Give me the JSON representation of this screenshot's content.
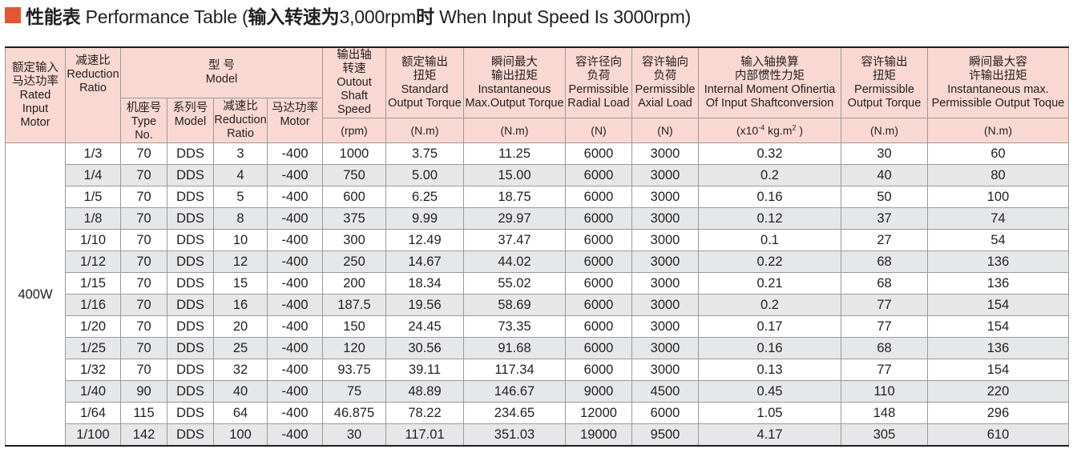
{
  "title": {
    "cn1": "性能表",
    "en1": " Performance Table (",
    "cn2": "输入转速为",
    "en2": "3,000rpm",
    "cn3": "时",
    "en3": " When Input Speed Is 3000rpm)"
  },
  "header": {
    "rated_motor": [
      "额定输入",
      "马达功率",
      "Rated Input",
      "Motor"
    ],
    "reduction": [
      "减速比",
      "Reduction",
      "Ratio"
    ],
    "model": [
      "型 号",
      "Model"
    ],
    "frame": [
      "机座号",
      "Type No."
    ],
    "series": [
      "系列号",
      "Model"
    ],
    "ratio": [
      "减速比",
      "Reduction",
      "Ratio"
    ],
    "motor": [
      "马达功率",
      "Motor"
    ],
    "output_speed": [
      "输出轴",
      "转速",
      "Outout",
      "Shaft Speed"
    ],
    "std_torque": [
      "额定输出",
      "扭矩",
      "Standard",
      "Output Torque"
    ],
    "max_torque": [
      "瞬间最大",
      "输出扭矩",
      "Instantaneous",
      "Max.Output Torque"
    ],
    "radial": [
      "容许径向",
      "负荷",
      "Permissible",
      "Radial Load"
    ],
    "axial": [
      "容许轴向",
      "负荷",
      "Permissible",
      "Axial Load"
    ],
    "inertia": [
      "输入轴换算",
      "内部惯性力矩",
      "Internal Moment Ofinertia",
      "Of Input Shaftconversion"
    ],
    "perm_torque": [
      "容许输出",
      "扭矩",
      "Permissible",
      "Output Torque"
    ],
    "perm_max": [
      "瞬间最大容",
      "许输出扭矩",
      "Instantaneous max.",
      "Permissible Output Toque"
    ],
    "units": {
      "speed": "(rpm)",
      "std_torque": "(N.m)",
      "max_torque": "(N.m)",
      "radial": "(N)",
      "axial": "(N)",
      "inertia_pre": "(x10",
      "inertia_exp": "-4",
      "inertia_mid": " kg.m",
      "inertia_sq": "2",
      "inertia_post": " )",
      "perm_torque": "(N.m)",
      "perm_max": "(N.m)"
    }
  },
  "motor_power": "400W",
  "rows": [
    [
      "1/3",
      "70",
      "DDS",
      "3",
      "-400",
      "1000",
      "3.75",
      "11.25",
      "6000",
      "3000",
      "0.32",
      "30",
      "60"
    ],
    [
      "1/4",
      "70",
      "DDS",
      "4",
      "-400",
      "750",
      "5.00",
      "15.00",
      "6000",
      "3000",
      "0.2",
      "40",
      "80"
    ],
    [
      "1/5",
      "70",
      "DDS",
      "5",
      "-400",
      "600",
      "6.25",
      "18.75",
      "6000",
      "3000",
      "0.16",
      "50",
      "100"
    ],
    [
      "1/8",
      "70",
      "DDS",
      "8",
      "-400",
      "375",
      "9.99",
      "29.97",
      "6000",
      "3000",
      "0.12",
      "37",
      "74"
    ],
    [
      "1/10",
      "70",
      "DDS",
      "10",
      "-400",
      "300",
      "12.49",
      "37.47",
      "6000",
      "3000",
      "0.1",
      "27",
      "54"
    ],
    [
      "1/12",
      "70",
      "DDS",
      "12",
      "-400",
      "250",
      "14.67",
      "44.02",
      "6000",
      "3000",
      "0.22",
      "68",
      "136"
    ],
    [
      "1/15",
      "70",
      "DDS",
      "15",
      "-400",
      "200",
      "18.34",
      "55.02",
      "6000",
      "3000",
      "0.21",
      "68",
      "136"
    ],
    [
      "1/16",
      "70",
      "DDS",
      "16",
      "-400",
      "187.5",
      "19.56",
      "58.69",
      "6000",
      "3000",
      "0.2",
      "77",
      "154"
    ],
    [
      "1/20",
      "70",
      "DDS",
      "20",
      "-400",
      "150",
      "24.45",
      "73.35",
      "6000",
      "3000",
      "0.17",
      "77",
      "154"
    ],
    [
      "1/25",
      "70",
      "DDS",
      "25",
      "-400",
      "120",
      "30.56",
      "91.68",
      "6000",
      "3000",
      "0.16",
      "68",
      "136"
    ],
    [
      "1/32",
      "70",
      "DDS",
      "32",
      "-400",
      "93.75",
      "39.11",
      "117.34",
      "6000",
      "3000",
      "0.13",
      "77",
      "154"
    ],
    [
      "1/40",
      "90",
      "DDS",
      "40",
      "-400",
      "75",
      "48.89",
      "146.67",
      "9000",
      "4500",
      "0.45",
      "110",
      "220"
    ],
    [
      "1/64",
      "115",
      "DDS",
      "64",
      "-400",
      "46.875",
      "78.22",
      "234.65",
      "12000",
      "6000",
      "1.05",
      "148",
      "296"
    ],
    [
      "1/100",
      "142",
      "DDS",
      "100",
      "-400",
      "30",
      "117.01",
      "351.03",
      "19000",
      "9500",
      "4.17",
      "305",
      "610"
    ]
  ]
}
